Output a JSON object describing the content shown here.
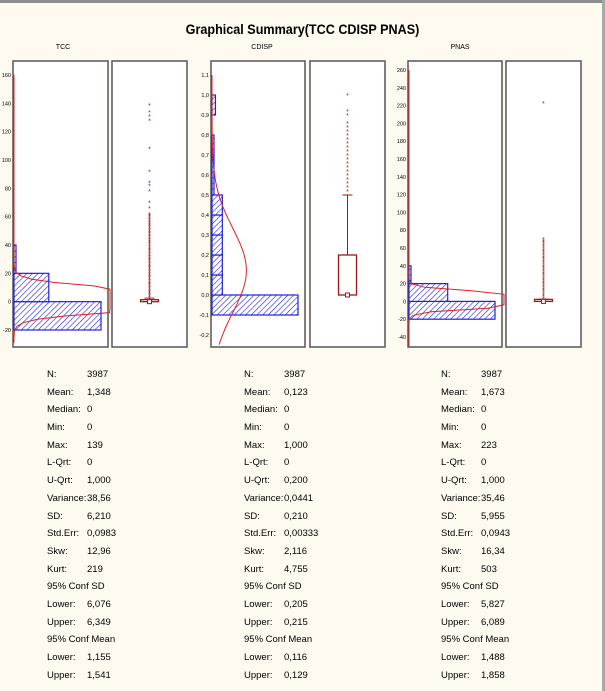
{
  "title": "Graphical Summary(TCC CDISP PNAS)",
  "colors": {
    "histogram": "#2020E0",
    "normal_curve": "#E02020",
    "boxplot": "#A01818",
    "background": "#FFFAF0"
  },
  "chart_data": [
    {
      "type": "histogram+boxplot",
      "variable": "TCC",
      "ylim": [
        -30,
        165
      ],
      "yticks": [
        -20,
        0,
        20,
        40,
        60,
        80,
        100,
        120,
        140,
        160
      ],
      "ytick_labels": [
        "-20",
        "0",
        "20",
        "40",
        "60",
        "80",
        "100",
        "120",
        "140",
        "160"
      ],
      "histogram": [
        {
          "from": -20,
          "to": 0,
          "count_rel": 1.0
        },
        {
          "from": 0,
          "to": 20,
          "count_rel": 0.4
        },
        {
          "from": 20,
          "to": 40,
          "count_rel": 0.02
        }
      ],
      "normal_curve": {
        "mean": 1.348,
        "sd": 6.21
      },
      "boxplot": {
        "q1": 0,
        "median": 0,
        "q3": 1.0,
        "whisker_low": 0,
        "whisker_high": 2.5,
        "outliers": [
          3,
          4,
          5,
          6,
          7,
          8,
          9,
          10,
          11,
          12,
          13,
          14,
          15,
          16,
          17,
          18,
          19,
          20,
          21,
          22,
          23,
          24,
          25,
          26,
          27,
          28,
          29,
          30,
          31,
          32,
          33,
          34,
          35,
          36,
          37,
          38,
          39,
          40,
          41,
          42,
          43,
          44,
          45,
          46,
          47,
          48,
          49,
          50,
          51,
          52,
          53,
          54,
          55,
          56,
          57,
          58,
          59,
          60,
          61,
          62,
          66,
          70,
          78,
          82,
          84,
          92,
          108,
          128,
          131,
          134,
          139
        ]
      },
      "stats": [
        {
          "label": "N:",
          "value": "3987"
        },
        {
          "label": "Mean:",
          "value": "1,348"
        },
        {
          "label": "Median:",
          "value": "0"
        },
        {
          "label": "Min:",
          "value": "0"
        },
        {
          "label": "Max:",
          "value": "139"
        },
        {
          "label": "L-Qrt:",
          "value": "0"
        },
        {
          "label": "U-Qrt:",
          "value": "1,000"
        },
        {
          "label": "Variance:",
          "value": "38,56"
        },
        {
          "label": "SD:",
          "value": "6,210"
        },
        {
          "label": "Std.Err:",
          "value": "0,0983"
        },
        {
          "label": "Skw:",
          "value": "12,96"
        },
        {
          "label": "Kurt:",
          "value": "219"
        },
        {
          "header": "95% Conf SD"
        },
        {
          "label": "Lower:",
          "value": "6,076"
        },
        {
          "label": "Upper:",
          "value": "6,349"
        },
        {
          "header": "95% Conf Mean"
        },
        {
          "label": "Lower:",
          "value": "1,155"
        },
        {
          "label": "Upper:",
          "value": "1,541"
        }
      ]
    },
    {
      "type": "histogram+boxplot",
      "variable": "CDISP",
      "ylim": [
        -0.25,
        1.15
      ],
      "yticks": [
        -0.2,
        -0.1,
        0.0,
        0.1,
        0.2,
        0.3,
        0.4,
        0.5,
        0.6,
        0.7,
        0.8,
        0.9,
        1.0,
        1.1
      ],
      "ytick_labels": [
        "-0,2",
        "-0,1",
        "0,0",
        "0,1",
        "0,2",
        "0,3",
        "0,4",
        "0,5",
        "0,6",
        "0,7",
        "0,8",
        "0,9",
        "1,0",
        "1,1"
      ],
      "histogram": [
        {
          "from": -0.1,
          "to": 0.0,
          "count_rel": 1.0
        },
        {
          "from": 0.0,
          "to": 0.1,
          "count_rel": 0.12
        },
        {
          "from": 0.1,
          "to": 0.2,
          "count_rel": 0.12
        },
        {
          "from": 0.2,
          "to": 0.3,
          "count_rel": 0.12
        },
        {
          "from": 0.3,
          "to": 0.4,
          "count_rel": 0.12
        },
        {
          "from": 0.4,
          "to": 0.5,
          "count_rel": 0.12
        },
        {
          "from": 0.5,
          "to": 0.8,
          "count_rel": 0.01
        },
        {
          "from": 0.9,
          "to": 1.0,
          "count_rel": 0.04
        }
      ],
      "normal_curve": {
        "mean": 0.123,
        "sd": 0.21
      },
      "boxplot": {
        "q1": 0,
        "median": 0,
        "q3": 0.2,
        "whisker_low": 0,
        "whisker_high": 0.5,
        "outliers": [
          0.52,
          0.54,
          0.56,
          0.58,
          0.6,
          0.62,
          0.64,
          0.66,
          0.68,
          0.7,
          0.72,
          0.74,
          0.76,
          0.78,
          0.8,
          0.82,
          0.84,
          0.86,
          0.9,
          0.92,
          1.0
        ]
      },
      "stats": [
        {
          "label": "N:",
          "value": "3987"
        },
        {
          "label": "Mean:",
          "value": "0,123"
        },
        {
          "label": "Median:",
          "value": "0"
        },
        {
          "label": "Min:",
          "value": "0"
        },
        {
          "label": "Max:",
          "value": "1,000"
        },
        {
          "label": "L-Qrt:",
          "value": "0"
        },
        {
          "label": "U-Qrt:",
          "value": "0,200"
        },
        {
          "label": "Variance:",
          "value": "0,0441"
        },
        {
          "label": "SD:",
          "value": "0,210"
        },
        {
          "label": "Std.Err:",
          "value": "0,00333"
        },
        {
          "label": "Skw:",
          "value": "2,116"
        },
        {
          "label": "Kurt:",
          "value": "4,755"
        },
        {
          "header": "95% Conf SD"
        },
        {
          "label": "Lower:",
          "value": "0,205"
        },
        {
          "label": "Upper:",
          "value": "0,215"
        },
        {
          "header": "95% Conf Mean"
        },
        {
          "label": "Lower:",
          "value": "0,116"
        },
        {
          "label": "Upper:",
          "value": "0,129"
        }
      ]
    },
    {
      "type": "histogram+boxplot",
      "variable": "PNAS",
      "ylim": [
        -50,
        265
      ],
      "yticks": [
        -40,
        -20,
        0,
        20,
        40,
        60,
        80,
        100,
        120,
        140,
        160,
        180,
        200,
        220,
        240,
        260
      ],
      "ytick_labels": [
        "-40",
        "-20",
        "0",
        "20",
        "40",
        "60",
        "80",
        "100",
        "120",
        "140",
        "160",
        "180",
        "200",
        "220",
        "240",
        "260"
      ],
      "histogram": [
        {
          "from": -20,
          "to": 0,
          "count_rel": 1.0
        },
        {
          "from": 0,
          "to": 20,
          "count_rel": 0.45
        },
        {
          "from": 20,
          "to": 40,
          "count_rel": 0.02
        }
      ],
      "normal_curve": {
        "mean": 1.673,
        "sd": 5.955
      },
      "boxplot": {
        "q1": 0,
        "median": 0,
        "q3": 1.0,
        "whisker_low": 0,
        "whisker_high": 2.5,
        "outliers": [
          4,
          6,
          8,
          10,
          12,
          14,
          16,
          18,
          20,
          22,
          24,
          26,
          28,
          30,
          32,
          34,
          36,
          38,
          40,
          42,
          44,
          46,
          48,
          50,
          52,
          54,
          56,
          58,
          60,
          62,
          64,
          66,
          68,
          70,
          223
        ]
      },
      "stats": [
        {
          "label": "N:",
          "value": "3987"
        },
        {
          "label": "Mean:",
          "value": "1,673"
        },
        {
          "label": "Median:",
          "value": "0"
        },
        {
          "label": "Min:",
          "value": "0"
        },
        {
          "label": "Max:",
          "value": "223"
        },
        {
          "label": "L-Qrt:",
          "value": "0"
        },
        {
          "label": "U-Qrt:",
          "value": "1,000"
        },
        {
          "label": "Variance:",
          "value": "35,46"
        },
        {
          "label": "SD:",
          "value": "5,955"
        },
        {
          "label": "Std.Err:",
          "value": "0,0943"
        },
        {
          "label": "Skw:",
          "value": "16,34"
        },
        {
          "label": "Kurt:",
          "value": "503"
        },
        {
          "header": "95% Conf SD"
        },
        {
          "label": "Lower:",
          "value": "5,827"
        },
        {
          "label": "Upper:",
          "value": "6,089"
        },
        {
          "header": "95% Conf Mean"
        },
        {
          "label": "Lower:",
          "value": "1,488"
        },
        {
          "label": "Upper:",
          "value": "1,858"
        }
      ]
    }
  ]
}
